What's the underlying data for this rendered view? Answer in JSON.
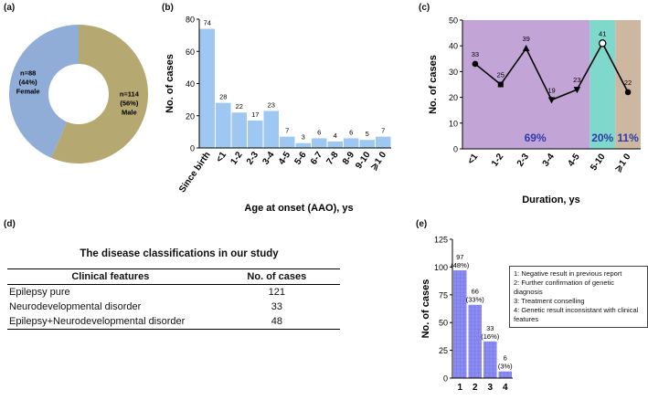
{
  "panels": {
    "a": {
      "label": "(a)"
    },
    "b": {
      "label": "(b)"
    },
    "c": {
      "label": "(c)"
    },
    "d": {
      "label": "(d)"
    },
    "e": {
      "label": "(e)"
    }
  },
  "chart_data": [
    {
      "id": "a",
      "type": "pie",
      "donut": true,
      "slices": [
        {
          "name": "Male",
          "value": 114,
          "l1": "n=114",
          "l2": "(56%)",
          "l3": "Male",
          "color": "#b5a870"
        },
        {
          "name": "Female",
          "value": 88,
          "l1": "n=88",
          "l2": "(44%)",
          "l3": "Female",
          "color": "#8fadd6"
        }
      ]
    },
    {
      "id": "b",
      "type": "bar",
      "categories": [
        "Since birth",
        "<1",
        "1-2",
        "2-3",
        "3-4",
        "4-5",
        "5-6",
        "6-7",
        "7-8",
        "8-9",
        "9-10",
        "⩾1 0"
      ],
      "values": [
        74,
        28,
        22,
        17,
        23,
        7,
        3,
        6,
        4,
        6,
        5,
        7
      ],
      "xlabel": "Age at onset (AAO), ys",
      "ylabel": "No. of cases",
      "ylim": [
        0,
        80
      ],
      "yticks": [
        0,
        20,
        40,
        60,
        80
      ],
      "color": "#9ec7f2"
    },
    {
      "id": "c",
      "type": "line",
      "categories": [
        "<1",
        "1-2",
        "2-3",
        "3-4",
        "4-5",
        "5-10",
        "⩾1 0"
      ],
      "values": [
        33,
        25,
        39,
        19,
        23,
        41,
        22
      ],
      "markers": [
        "circle",
        "square",
        "triangle-up",
        "triangle-down",
        "triangle-down",
        "circle-open",
        "circle"
      ],
      "xlabel": "Duration, ys",
      "ylabel": "No. of cases",
      "ylim": [
        0,
        50
      ],
      "yticks": [
        0,
        10,
        20,
        30,
        40,
        50
      ],
      "regions": [
        {
          "label": "69%",
          "color": "#c2a5d6"
        },
        {
          "label": "20%",
          "color": "#7fd8cc"
        },
        {
          "label": "11%",
          "color": "#cdb7a0"
        }
      ]
    },
    {
      "id": "e",
      "type": "bar",
      "categories": [
        "1",
        "2",
        "3",
        "4"
      ],
      "values": [
        97,
        66,
        33,
        6
      ],
      "value_labels": [
        "97",
        "66",
        "33",
        "6"
      ],
      "percent_labels": [
        "(48%)",
        "(33%)",
        "(16%)",
        "(3%)"
      ],
      "xlabel": "",
      "ylabel": "No. of cases",
      "ylim": [
        0,
        125
      ],
      "yticks": [
        0,
        25,
        50,
        75,
        100,
        125
      ],
      "color": "#8a8cf0"
    }
  ],
  "table": {
    "title": "The disease classifications in our study",
    "headers": [
      "Clinical features",
      "No. of cases"
    ],
    "rows": [
      [
        "Epilepsy pure",
        "121"
      ],
      [
        "Neurodevelopmental disorder",
        "33"
      ],
      [
        "Epilepsy+Neurodevelopmental disorder",
        "48"
      ]
    ]
  },
  "legend_e": [
    "1: Negative result in previous report",
    "2: Further confirmation of genetic diagnosis",
    "3: Treatment conselling",
    "4: Genetic result inconsistant with clinical features"
  ]
}
